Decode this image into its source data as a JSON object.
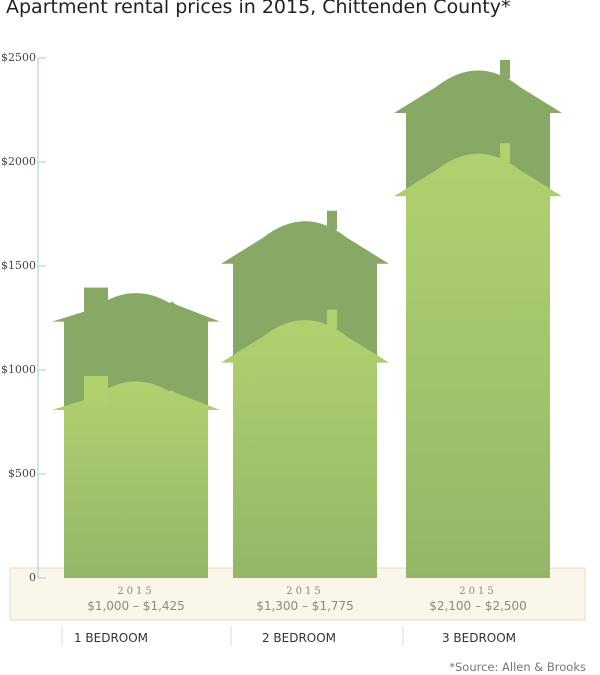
{
  "chart_data": {
    "type": "bar",
    "title": "Apartment rental prices in 2015, Chittenden County*",
    "categories": [
      "1 BEDROOM",
      "2 BEDROOM",
      "3 BEDROOM"
    ],
    "series": [
      {
        "name": "low",
        "values": [
          1000,
          1300,
          2100
        ]
      },
      {
        "name": "high",
        "values": [
          1425,
          1775,
          2500
        ]
      }
    ],
    "year_label": "2015",
    "range_labels": [
      "$1,000 – $1,425",
      "$1,300 – $1,775",
      "$2,100 – $2,500"
    ],
    "yticks": [
      0,
      500,
      1000,
      1500,
      2000,
      2500
    ],
    "ytick_labels": [
      "0",
      "$500",
      "$1000",
      "$1500",
      "$2000",
      "$2500"
    ],
    "ylim": [
      0,
      2500
    ],
    "grid": false,
    "colors": {
      "high": "#88a865",
      "low": "#b1d16f",
      "band": "#faf6ea",
      "axis": "#9cc8dc"
    },
    "source": "*Source: Allen & Brooks"
  }
}
